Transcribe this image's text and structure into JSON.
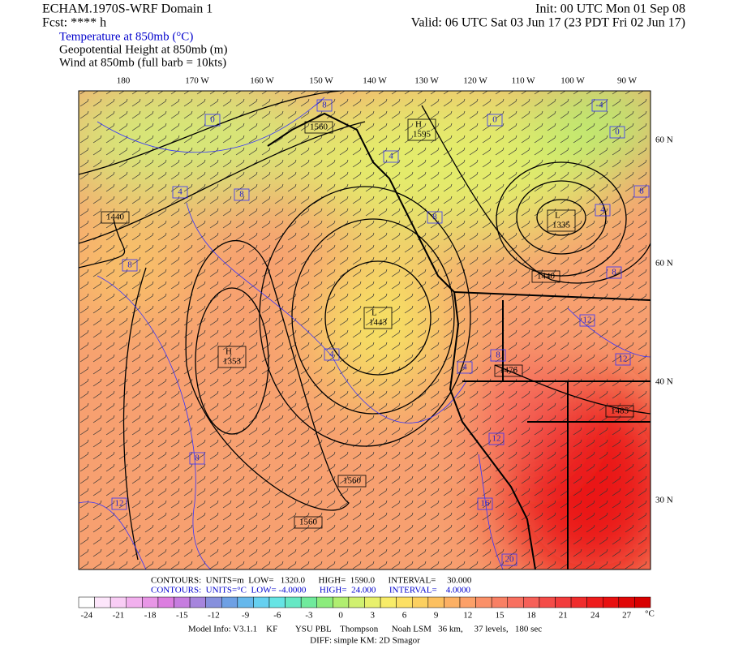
{
  "header": {
    "model": "ECHAM.1970S-WRF Domain 1",
    "fcst": "Fcst: **** h",
    "init": "Init: 00 UTC Mon 01 Sep 08",
    "valid": "Valid: 06 UTC Sat 03 Jun 17 (23 PDT Fri 02 Jun 17)",
    "fields": [
      "Temperature at 850mb (°C)",
      "Geopotential Height at 850mb (m)",
      "Wind at 850mb (full barb = 10kts)"
    ]
  },
  "map": {
    "lon_labels": [
      "180",
      "170 W",
      "160 W",
      "150 W",
      "140 W",
      "130 W",
      "120 W",
      "110 W",
      "100 W",
      "90 W"
    ],
    "lat_labels": [
      "60 N",
      "60 N",
      "40 N",
      "30 N"
    ],
    "height_labels": [
      {
        "text": "1560"
      },
      {
        "symbol": "H",
        "text": "1595"
      },
      {
        "text": "1440"
      },
      {
        "symbol": "L",
        "text": "1335"
      },
      {
        "text": "1440"
      },
      {
        "symbol": "L",
        "text": "1443"
      },
      {
        "symbol": "H",
        "text": "1353"
      },
      {
        "text": "1476"
      },
      {
        "text": "1485"
      },
      {
        "text": "1560"
      },
      {
        "text": "1560"
      }
    ],
    "temp_labels": [
      "8",
      "0",
      "4",
      "0",
      "-4",
      "0",
      "4",
      "8",
      "8",
      "4",
      "8",
      "8",
      "8",
      "12",
      "4",
      "4",
      "8",
      "12",
      "12",
      "8",
      "12",
      "16",
      "20"
    ]
  },
  "contour_info": {
    "height": "CONTOURS:  UNITS=m  LOW=   1320.0      HIGH=  1590.0      INTERVAL=     30.000",
    "temperature": "CONTOURS:  UNITS=°C  LOW= -4.0000      HIGH=  24.000      INTERVAL=    4.0000"
  },
  "colorbar": {
    "colors": [
      "#ffffff",
      "#fde6fb",
      "#f9cdf5",
      "#f2b0ee",
      "#e896e6",
      "#dc7ee0",
      "#c67ddf",
      "#a685dd",
      "#8690dd",
      "#6ea0e4",
      "#66b8ec",
      "#66d0f0",
      "#66e4e4",
      "#66e8c4",
      "#70ea9c",
      "#8cec7c",
      "#b0ee70",
      "#d0f070",
      "#e8f06c",
      "#f8ec68",
      "#fce064",
      "#fcd060",
      "#fcc060",
      "#fcb064",
      "#fca068",
      "#fa9068",
      "#f88064",
      "#f87060",
      "#f66058",
      "#f44c48",
      "#f23c3c",
      "#f02c2c",
      "#ee1c1c",
      "#e81010",
      "#e00808",
      "#d80000"
    ],
    "labels": [
      "-24",
      "-21",
      "-18",
      "-15",
      "-12",
      "-9",
      "-6",
      "-3",
      "0",
      "3",
      "6",
      "9",
      "12",
      "15",
      "18",
      "21",
      "24",
      "27"
    ],
    "unit": "°C"
  },
  "footer": {
    "model_info": "Model Info: V3.1.1    KF        YSU PBL    Thompson      Noah LSM   36 km,     37 levels,   180 sec",
    "diff": "DIFF: simple KM: 2D Smagor"
  }
}
